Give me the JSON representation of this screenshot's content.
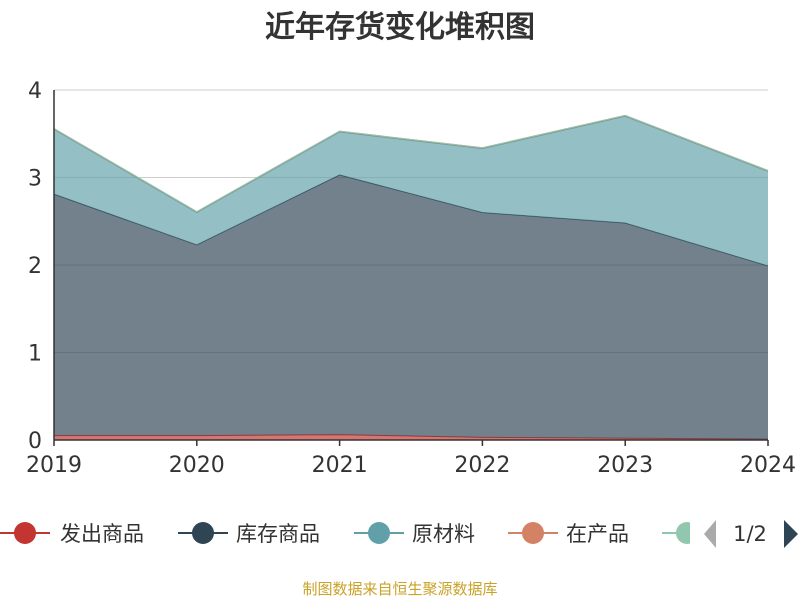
{
  "chart_data": {
    "type": "area",
    "stacked": true,
    "title": "近年存货变化堆积图",
    "ylabel": "",
    "ylim": [
      0,
      4
    ],
    "yticks": [
      0,
      1,
      2,
      3,
      4
    ],
    "grid": true,
    "categories": [
      "2019",
      "2020",
      "2021",
      "2022",
      "2023",
      "2024"
    ],
    "series": [
      {
        "name": "发出商品",
        "color": "#c23531",
        "values": [
          0.05,
          0.05,
          0.06,
          0.03,
          0.02,
          0.01
        ]
      },
      {
        "name": "库存商品",
        "color": "#2f4554",
        "values": [
          2.76,
          2.18,
          2.97,
          2.57,
          2.46,
          1.98
        ]
      },
      {
        "name": "原材料",
        "color": "#61a0a8",
        "values": [
          0.74,
          0.37,
          0.49,
          0.73,
          1.22,
          1.08
        ]
      },
      {
        "name": "在产品",
        "color": "#d48265",
        "values": [
          0.01,
          0.01,
          0.01,
          0.01,
          0.01,
          0.01
        ]
      },
      {
        "name": "",
        "color": "#91c7ae",
        "values": [
          0,
          0,
          0,
          0,
          0,
          0
        ]
      }
    ],
    "legend": {
      "position": "bottom",
      "page": "1/2"
    },
    "source": "制图数据来自恒生聚源数据库"
  }
}
